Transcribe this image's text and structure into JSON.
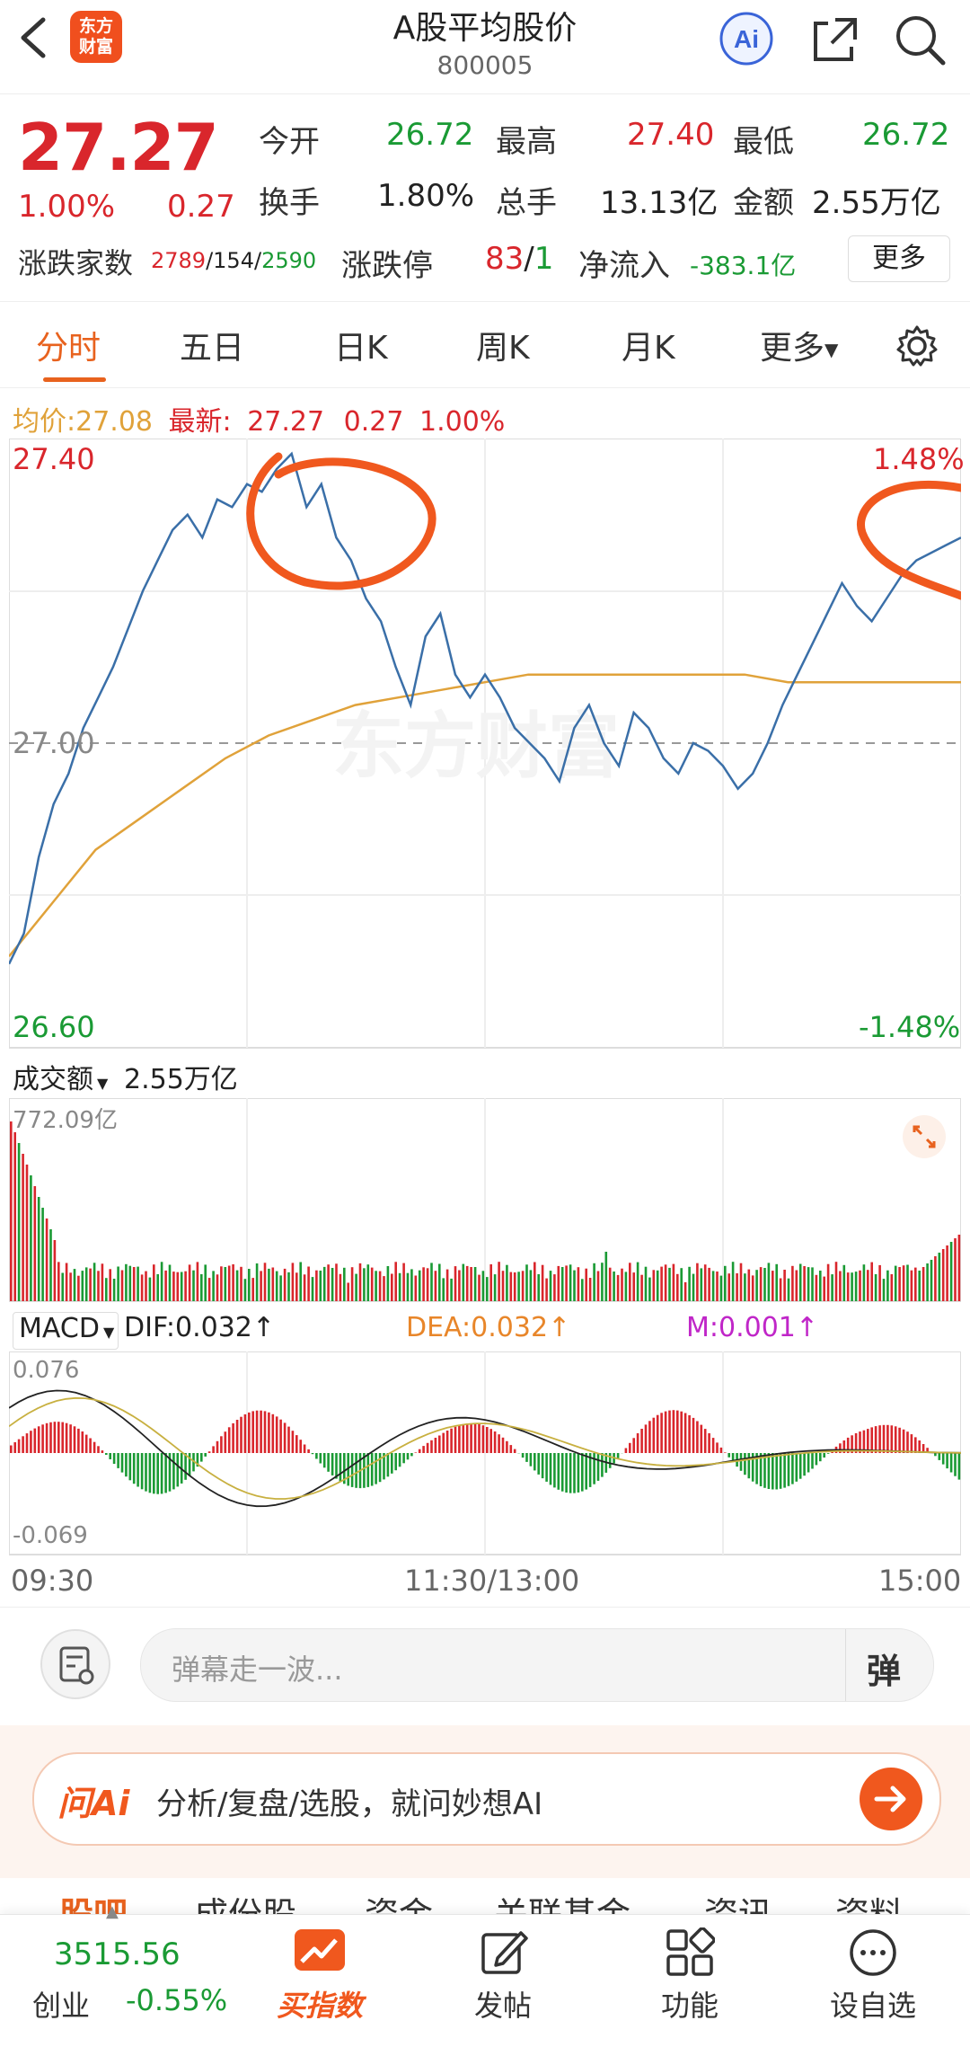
{
  "header": {
    "logo_line1": "东方",
    "logo_line2": "财富",
    "title": "A股平均股价",
    "code": "800005"
  },
  "quote": {
    "price": "27.27",
    "change_pct": "1.00%",
    "change": "0.27",
    "open_label": "今开",
    "open": "26.72",
    "high_label": "最高",
    "high": "27.40",
    "low_label": "最低",
    "low": "26.72",
    "turnover_label": "换手",
    "turnover": "1.80%",
    "volume_label": "总手",
    "volume": "13.13亿",
    "amount_label": "金额",
    "amount": "2.55万亿",
    "breadth_label": "涨跌家数",
    "breadth_up": "2789",
    "breadth_flat": "/154/",
    "breadth_down": "2590",
    "limit_label": "涨跌停",
    "limit_up": "83",
    "limit_slash": "/",
    "limit_down": "1",
    "netflow_label": "净流入",
    "netflow": "-383.1亿",
    "more_button": "更多"
  },
  "tabs": [
    "分时",
    "五日",
    "日K",
    "周K",
    "月K",
    "更多"
  ],
  "info_line": {
    "avg_label": "均价:",
    "avg": "27.08",
    "latest_label": "最新:",
    "latest": "27.27",
    "chg": "0.27",
    "pct": "1.00%"
  },
  "price_chart_labels": {
    "top_left": "27.40",
    "top_right": "1.48%",
    "mid_left": "27.00",
    "bottom_left": "26.60",
    "bottom_right": "-1.48%"
  },
  "volume_panel": {
    "select_label": "成交额",
    "total": "2.55万亿",
    "max": "772.09亿"
  },
  "macd_panel": {
    "select_label": "MACD",
    "dif": "DIF:0.032↑",
    "dea": "DEA:0.032↑",
    "m": "M:0.001↑",
    "top": "0.076",
    "bottom": "-0.069"
  },
  "time_axis": {
    "start": "09:30",
    "mid": "11:30/13:00",
    "end": "15:00"
  },
  "comment": {
    "placeholder": "弹幕走一波...",
    "button": "弹"
  },
  "ai_bar": {
    "logo": "问Ai",
    "text": "分析/复盘/选股，就问妙想AI"
  },
  "section_tabs": [
    "股吧",
    "成份股",
    "资金",
    "关联基金",
    "资讯",
    "资料"
  ],
  "footer": {
    "index_value": "3515.56",
    "index_name": "创业",
    "index_change": "-0.55%",
    "buy_label": "买指数",
    "post_label": "发帖",
    "func_label": "功能",
    "watch_label": "设自选"
  },
  "colors": {
    "up": "#d9262c",
    "down": "#1a9a34",
    "accent": "#e8621e",
    "price_line": "#3a6fa8",
    "avg_line": "#e0a23a"
  },
  "chart_data": {
    "type": "line",
    "series": [
      {
        "name": "",
        "y": [
          26.71,
          26.75,
          26.85,
          26.92,
          26.96,
          27.02,
          27.06,
          27.1,
          27.15,
          27.2,
          27.24,
          27.28,
          27.3,
          27.27,
          27.32,
          27.31,
          27.34,
          27.33,
          27.36,
          27.38,
          27.31,
          27.34,
          27.27,
          27.24,
          27.19,
          27.16,
          27.1,
          27.05,
          27.14,
          27.17,
          27.09,
          27.06,
          27.09,
          27.06,
          27.02,
          27.0,
          26.98,
          26.95,
          27.02,
          27.05,
          27.0,
          26.97,
          27.04,
          27.02,
          26.98,
          26.96,
          27.0,
          26.99,
          26.97,
          26.94,
          26.96,
          27.0,
          27.05,
          27.09,
          27.13,
          27.17,
          27.21,
          27.18,
          27.16,
          27.19,
          27.22,
          27.24,
          27.25,
          27.26,
          27.27
        ]
      },
      {
        "name": "",
        "y": [
          26.72,
          26.79,
          26.86,
          26.9,
          26.94,
          26.98,
          27.01,
          27.03,
          27.05,
          27.06,
          27.07,
          27.08,
          27.09,
          27.09,
          27.09,
          27.09,
          27.09,
          27.09,
          27.08,
          27.08,
          27.08,
          27.08,
          27.08
        ]
      }
    ],
    "xlabels": [
      "09:30",
      "11:30/13:00",
      "15:00"
    ],
    "ylim": [
      26.6,
      27.4
    ],
    "y_labels_left": [
      "27.40",
      "27.00",
      "26.60"
    ],
    "y_labels_right": [
      "1.48%",
      "-1.48%"
    ]
  }
}
